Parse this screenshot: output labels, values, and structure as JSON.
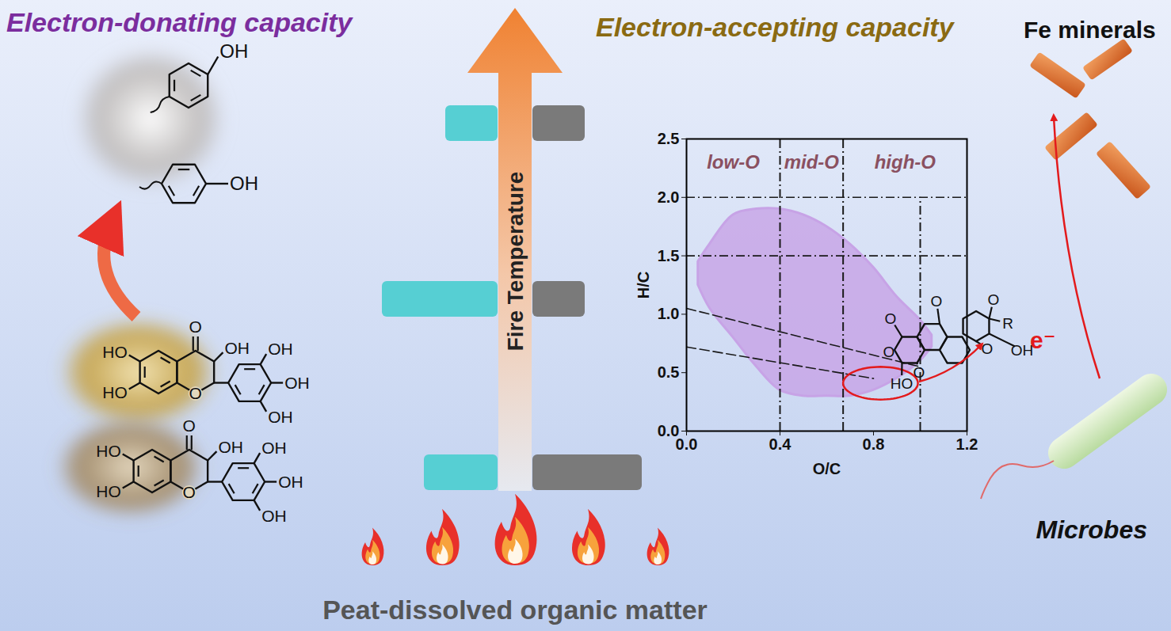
{
  "texts": {
    "left_title": "Electron-donating capacity",
    "right_title": "Electron-accepting capacity",
    "arrow_label": "Fire Temperature",
    "footer": "Peat-dissolved organic matter",
    "minerals_label": "Fe minerals",
    "microbes_label": "Microbes",
    "electron_label": "e⁻"
  },
  "structures": {
    "phenol_labels": [
      "OH",
      "OH"
    ],
    "flavonol_labels": [
      "O",
      "OH",
      "HO",
      "HO",
      "O",
      "OH",
      "OH",
      "OH"
    ],
    "quinone_labels": [
      "O",
      "O",
      "O",
      "O",
      "O",
      "O",
      "R",
      "OH",
      "HO"
    ]
  },
  "chart_data": {
    "type": "scatter",
    "x_label": "O/C",
    "y_label": "H/C",
    "xlim": [
      0,
      1.2
    ],
    "ylim": [
      0,
      2.5
    ],
    "xticks": [
      {
        "value": 0,
        "label": "0.0"
      },
      0.4,
      0.8,
      1.2
    ],
    "yticks": [
      {
        "value": 0,
        "label": "0.0"
      },
      0.5,
      {
        "value": 1,
        "label": "1.0"
      },
      1.5,
      {
        "value": 2,
        "label": "2.0"
      },
      2.5
    ],
    "color": "#c7a3e6",
    "cloud": {
      "x": [
        0.05,
        0.1,
        0.2,
        0.3,
        0.4,
        0.5,
        0.6,
        0.7,
        0.8,
        0.9,
        1.0,
        1.05
      ],
      "y_low": [
        1.25,
        1.05,
        0.8,
        0.55,
        0.35,
        0.3,
        0.3,
        0.3,
        0.35,
        0.45,
        0.6,
        0.72
      ],
      "y_high": [
        1.45,
        1.6,
        1.85,
        1.9,
        1.9,
        1.85,
        1.75,
        1.6,
        1.4,
        1.15,
        0.95,
        0.82
      ]
    },
    "regions": [
      {
        "label": "low-O",
        "from": 0,
        "to": 0.4
      },
      {
        "label": "mid-O",
        "from": 0.4,
        "to": 0.67
      },
      {
        "label": "high-O",
        "from": 0.67,
        "to": 1.2
      }
    ],
    "vertical_lines": [
      {
        "x": 0.4,
        "y1": 0,
        "y2": 2.5
      },
      {
        "x": 0.67,
        "y1": 0,
        "y2": 2.5
      },
      {
        "x": 1.0,
        "y1": 0,
        "y2": 2.0
      }
    ],
    "horizontal_lines": [
      {
        "y": 2.0,
        "x1": 0,
        "x2": 1.2
      },
      {
        "y": 1.5,
        "x1": 0,
        "x2": 1.2
      }
    ],
    "diagonal_lines": [
      {
        "x": [
          0,
          1.0
        ],
        "y": [
          1.05,
          0.55
        ]
      },
      {
        "x": [
          0,
          0.8
        ],
        "y": [
          0.72,
          0.45
        ]
      }
    ],
    "line_style": "dashdot",
    "highlight": {
      "cx": 0.83,
      "cy": 0.41,
      "rx": 0.16,
      "ry": 0.14,
      "color": "#e31a1c"
    }
  }
}
